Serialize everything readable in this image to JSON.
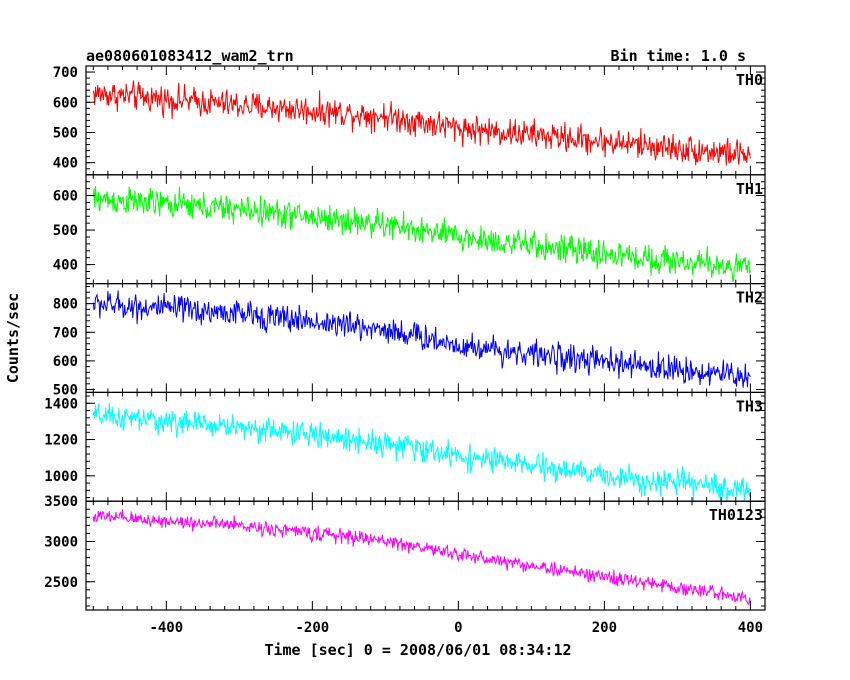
{
  "header": {
    "title": "ae080601083412_wam2_trn",
    "bin_time": "Bin time: 1.0 s"
  },
  "chart_data": {
    "type": "line",
    "title": "ae080601083412_wam2_trn",
    "subtitle": "Bin time: 1.0 s",
    "xlabel": "Time [sec] 0 = 2008/06/01 08:34:12",
    "ylabel": "Counts/sec",
    "xlim": [
      -510,
      420
    ],
    "x_ticks": [
      -400,
      -200,
      0,
      200,
      400
    ],
    "x_range": [
      -500,
      400
    ],
    "bin_time": 1.0,
    "panels": [
      {
        "name": "TH0",
        "color": "#ff0000",
        "ylim": [
          360,
          720
        ],
        "y_ticks": [
          400,
          500,
          600,
          700
        ],
        "trend": [
          [
            -500,
            630
          ],
          [
            -300,
            590
          ],
          [
            -100,
            555
          ],
          [
            0,
            515
          ],
          [
            200,
            470
          ],
          [
            400,
            425
          ]
        ],
        "noise_amplitude": 35
      },
      {
        "name": "TH1",
        "color": "#00ff00",
        "ylim": [
          345,
          660
        ],
        "y_ticks": [
          400,
          500,
          600
        ],
        "trend": [
          [
            -500,
            590
          ],
          [
            -300,
            560
          ],
          [
            -100,
            515
          ],
          [
            0,
            480
          ],
          [
            200,
            430
          ],
          [
            400,
            390
          ]
        ],
        "noise_amplitude": 30
      },
      {
        "name": "TH2",
        "color": "#0000ff",
        "ylim": [
          490,
          870
        ],
        "y_ticks": [
          500,
          600,
          700,
          800
        ],
        "trend": [
          [
            -500,
            800
          ],
          [
            -300,
            765
          ],
          [
            -100,
            710
          ],
          [
            0,
            655
          ],
          [
            200,
            595
          ],
          [
            400,
            545
          ]
        ],
        "noise_amplitude": 35
      },
      {
        "name": "TH3",
        "color": "#00ffff",
        "ylim": [
          860,
          1460
        ],
        "y_ticks": [
          1000,
          1200,
          1400
        ],
        "trend": [
          [
            -500,
            1330
          ],
          [
            -300,
            1270
          ],
          [
            -100,
            1180
          ],
          [
            0,
            1110
          ],
          [
            200,
            1000
          ],
          [
            400,
            920
          ]
        ],
        "noise_amplitude": 50
      },
      {
        "name": "TH0123",
        "color": "#ff00ff",
        "ylim": [
          2150,
          3500
        ],
        "y_ticks": [
          2500,
          3000,
          3500
        ],
        "trend": [
          [
            -500,
            3310
          ],
          [
            -300,
            3200
          ],
          [
            -100,
            3010
          ],
          [
            0,
            2840
          ],
          [
            200,
            2560
          ],
          [
            400,
            2300
          ]
        ],
        "noise_amplitude": 65
      }
    ]
  }
}
